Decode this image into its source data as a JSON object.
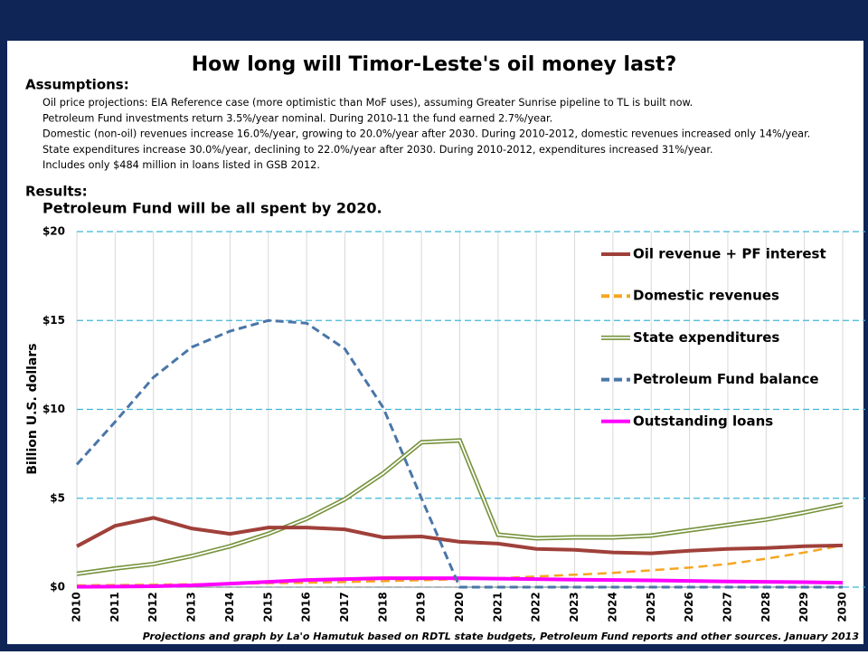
{
  "chart_data": {
    "type": "line",
    "title": "How long will Timor-Leste's oil money last?",
    "assumptions_heading": "Assumptions:",
    "assumptions": [
      "Oil price projections: EIA Reference case (more optimistic than MoF uses), assuming Greater Sunrise pipeline to TL is built now.",
      "Petroleum Fund investments return 3.5%/year nominal.  During 2010-11 the fund earned 2.7%/year.",
      "Domestic (non-oil) revenues increase 16.0%/year, growing to 20.0%/year after 2030.  During 2010-2012, domestic revenues increased only 14%/year.",
      "State expenditures increase 30.0%/year, declining to 22.0%/year after 2030. During 2010-2012, expenditures increased 31%/year.",
      "Includes only $484 million in loans listed in GSB 2012."
    ],
    "results_heading": "Results:",
    "subtitle": "Petroleum Fund will be all spent by 2020.",
    "ylabel": "Billion U.S. dollars",
    "footer": "Projections and graph by La'o Hamutuk based on RDTL state budgets, Petroleum Fund reports and other sources.   January 2013",
    "x": [
      2010,
      2011,
      2012,
      2013,
      2014,
      2015,
      2016,
      2017,
      2018,
      2019,
      2020,
      2021,
      2022,
      2023,
      2024,
      2025,
      2026,
      2027,
      2028,
      2029,
      2030
    ],
    "xlim": [
      2010,
      2030
    ],
    "xticks": [
      2010,
      2011,
      2012,
      2013,
      2014,
      2015,
      2016,
      2017,
      2018,
      2019,
      2020,
      2021,
      2022,
      2023,
      2024,
      2025,
      2026,
      2027,
      2028,
      2029,
      2030
    ],
    "ylim": [
      0,
      20
    ],
    "yticks": [
      {
        "value": 0,
        "label": "$0"
      },
      {
        "value": 5,
        "label": "$5"
      },
      {
        "value": 10,
        "label": "$10"
      },
      {
        "value": 15,
        "label": "$15"
      },
      {
        "value": 20,
        "label": "$20"
      }
    ],
    "grid": true,
    "series": [
      {
        "name": "Oil revenue + PF interest",
        "color": "#a0403a",
        "style": "solid",
        "values": [
          2.3,
          3.45,
          3.9,
          3.3,
          3.0,
          3.35,
          3.35,
          3.25,
          2.8,
          2.85,
          2.55,
          2.45,
          2.15,
          2.1,
          1.95,
          1.9,
          2.05,
          2.15,
          2.2,
          2.3,
          2.35
        ]
      },
      {
        "name": "Domestic revenues",
        "color": "#f5a623",
        "style": "dashed",
        "values": [
          0.1,
          0.12,
          0.14,
          0.16,
          0.19,
          0.22,
          0.25,
          0.29,
          0.34,
          0.39,
          0.45,
          0.5,
          0.6,
          0.7,
          0.8,
          0.95,
          1.1,
          1.3,
          1.6,
          1.95,
          2.35
        ]
      },
      {
        "name": "State expenditures",
        "color": "#77933c",
        "style": "double",
        "values": [
          0.75,
          1.05,
          1.3,
          1.75,
          2.3,
          3.0,
          3.85,
          4.95,
          6.4,
          8.15,
          8.25,
          2.95,
          2.75,
          2.8,
          2.8,
          2.9,
          3.2,
          3.5,
          3.8,
          4.2,
          4.65
        ]
      },
      {
        "name": "Petroleum Fund  balance",
        "color": "#4a76a8",
        "style": "dashed",
        "values": [
          6.9,
          9.3,
          11.8,
          13.5,
          14.4,
          15.0,
          14.85,
          13.4,
          10.1,
          5.0,
          0,
          0,
          0,
          0,
          0,
          0,
          0,
          0,
          0,
          0,
          0
        ]
      },
      {
        "name": "Outstanding loans",
        "color": "#ff00ff",
        "style": "solid",
        "values": [
          0.02,
          0.03,
          0.05,
          0.1,
          0.2,
          0.3,
          0.4,
          0.45,
          0.5,
          0.5,
          0.5,
          0.48,
          0.45,
          0.42,
          0.4,
          0.38,
          0.35,
          0.32,
          0.3,
          0.28,
          0.25
        ]
      }
    ]
  }
}
